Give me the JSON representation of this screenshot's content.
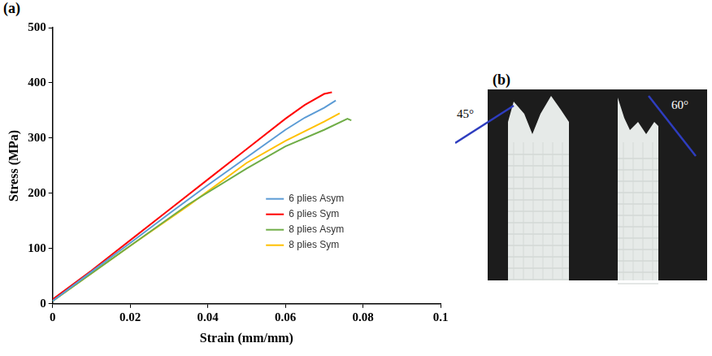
{
  "chart_data": {
    "type": "line",
    "panel_label": "(a)",
    "x_label": "Strain (mm/mm)",
    "y_label": "Stress (MPa)",
    "xlim": [
      0,
      0.1
    ],
    "xticks": [
      0,
      0.02,
      0.04,
      0.06,
      0.08,
      0.1
    ],
    "ylim": [
      0,
      500
    ],
    "yticks": [
      0,
      100,
      200,
      300,
      400,
      500
    ],
    "grid": false,
    "legend": "right",
    "series": [
      {
        "name": "6 plies Asym",
        "color": "#5b9bd5",
        "x": [
          0,
          0.01,
          0.02,
          0.03,
          0.04,
          0.05,
          0.06,
          0.065,
          0.07,
          0.073
        ],
        "values": [
          5,
          58,
          110,
          163,
          215,
          265,
          315,
          337,
          355,
          368
        ]
      },
      {
        "name": "6 plies Sym",
        "color": "#ff0000",
        "x": [
          0,
          0.01,
          0.02,
          0.03,
          0.04,
          0.05,
          0.06,
          0.065,
          0.07,
          0.072
        ],
        "values": [
          8,
          60,
          115,
          170,
          225,
          280,
          335,
          360,
          380,
          383
        ]
      },
      {
        "name": "8 plies Asym",
        "color": "#70ad47",
        "x": [
          0,
          0.01,
          0.02,
          0.035,
          0.05,
          0.06,
          0.07,
          0.076,
          0.077
        ],
        "values": [
          5,
          55,
          105,
          180,
          245,
          285,
          315,
          335,
          332
        ]
      },
      {
        "name": "8 plies Sym",
        "color": "#ffc000",
        "x": [
          0,
          0.01,
          0.02,
          0.035,
          0.05,
          0.06,
          0.07,
          0.074
        ],
        "values": [
          5,
          55,
          105,
          178,
          255,
          295,
          330,
          345
        ]
      }
    ]
  },
  "photo_panel": {
    "panel_label": "(b)",
    "annotations": [
      "45°",
      "60°"
    ]
  }
}
